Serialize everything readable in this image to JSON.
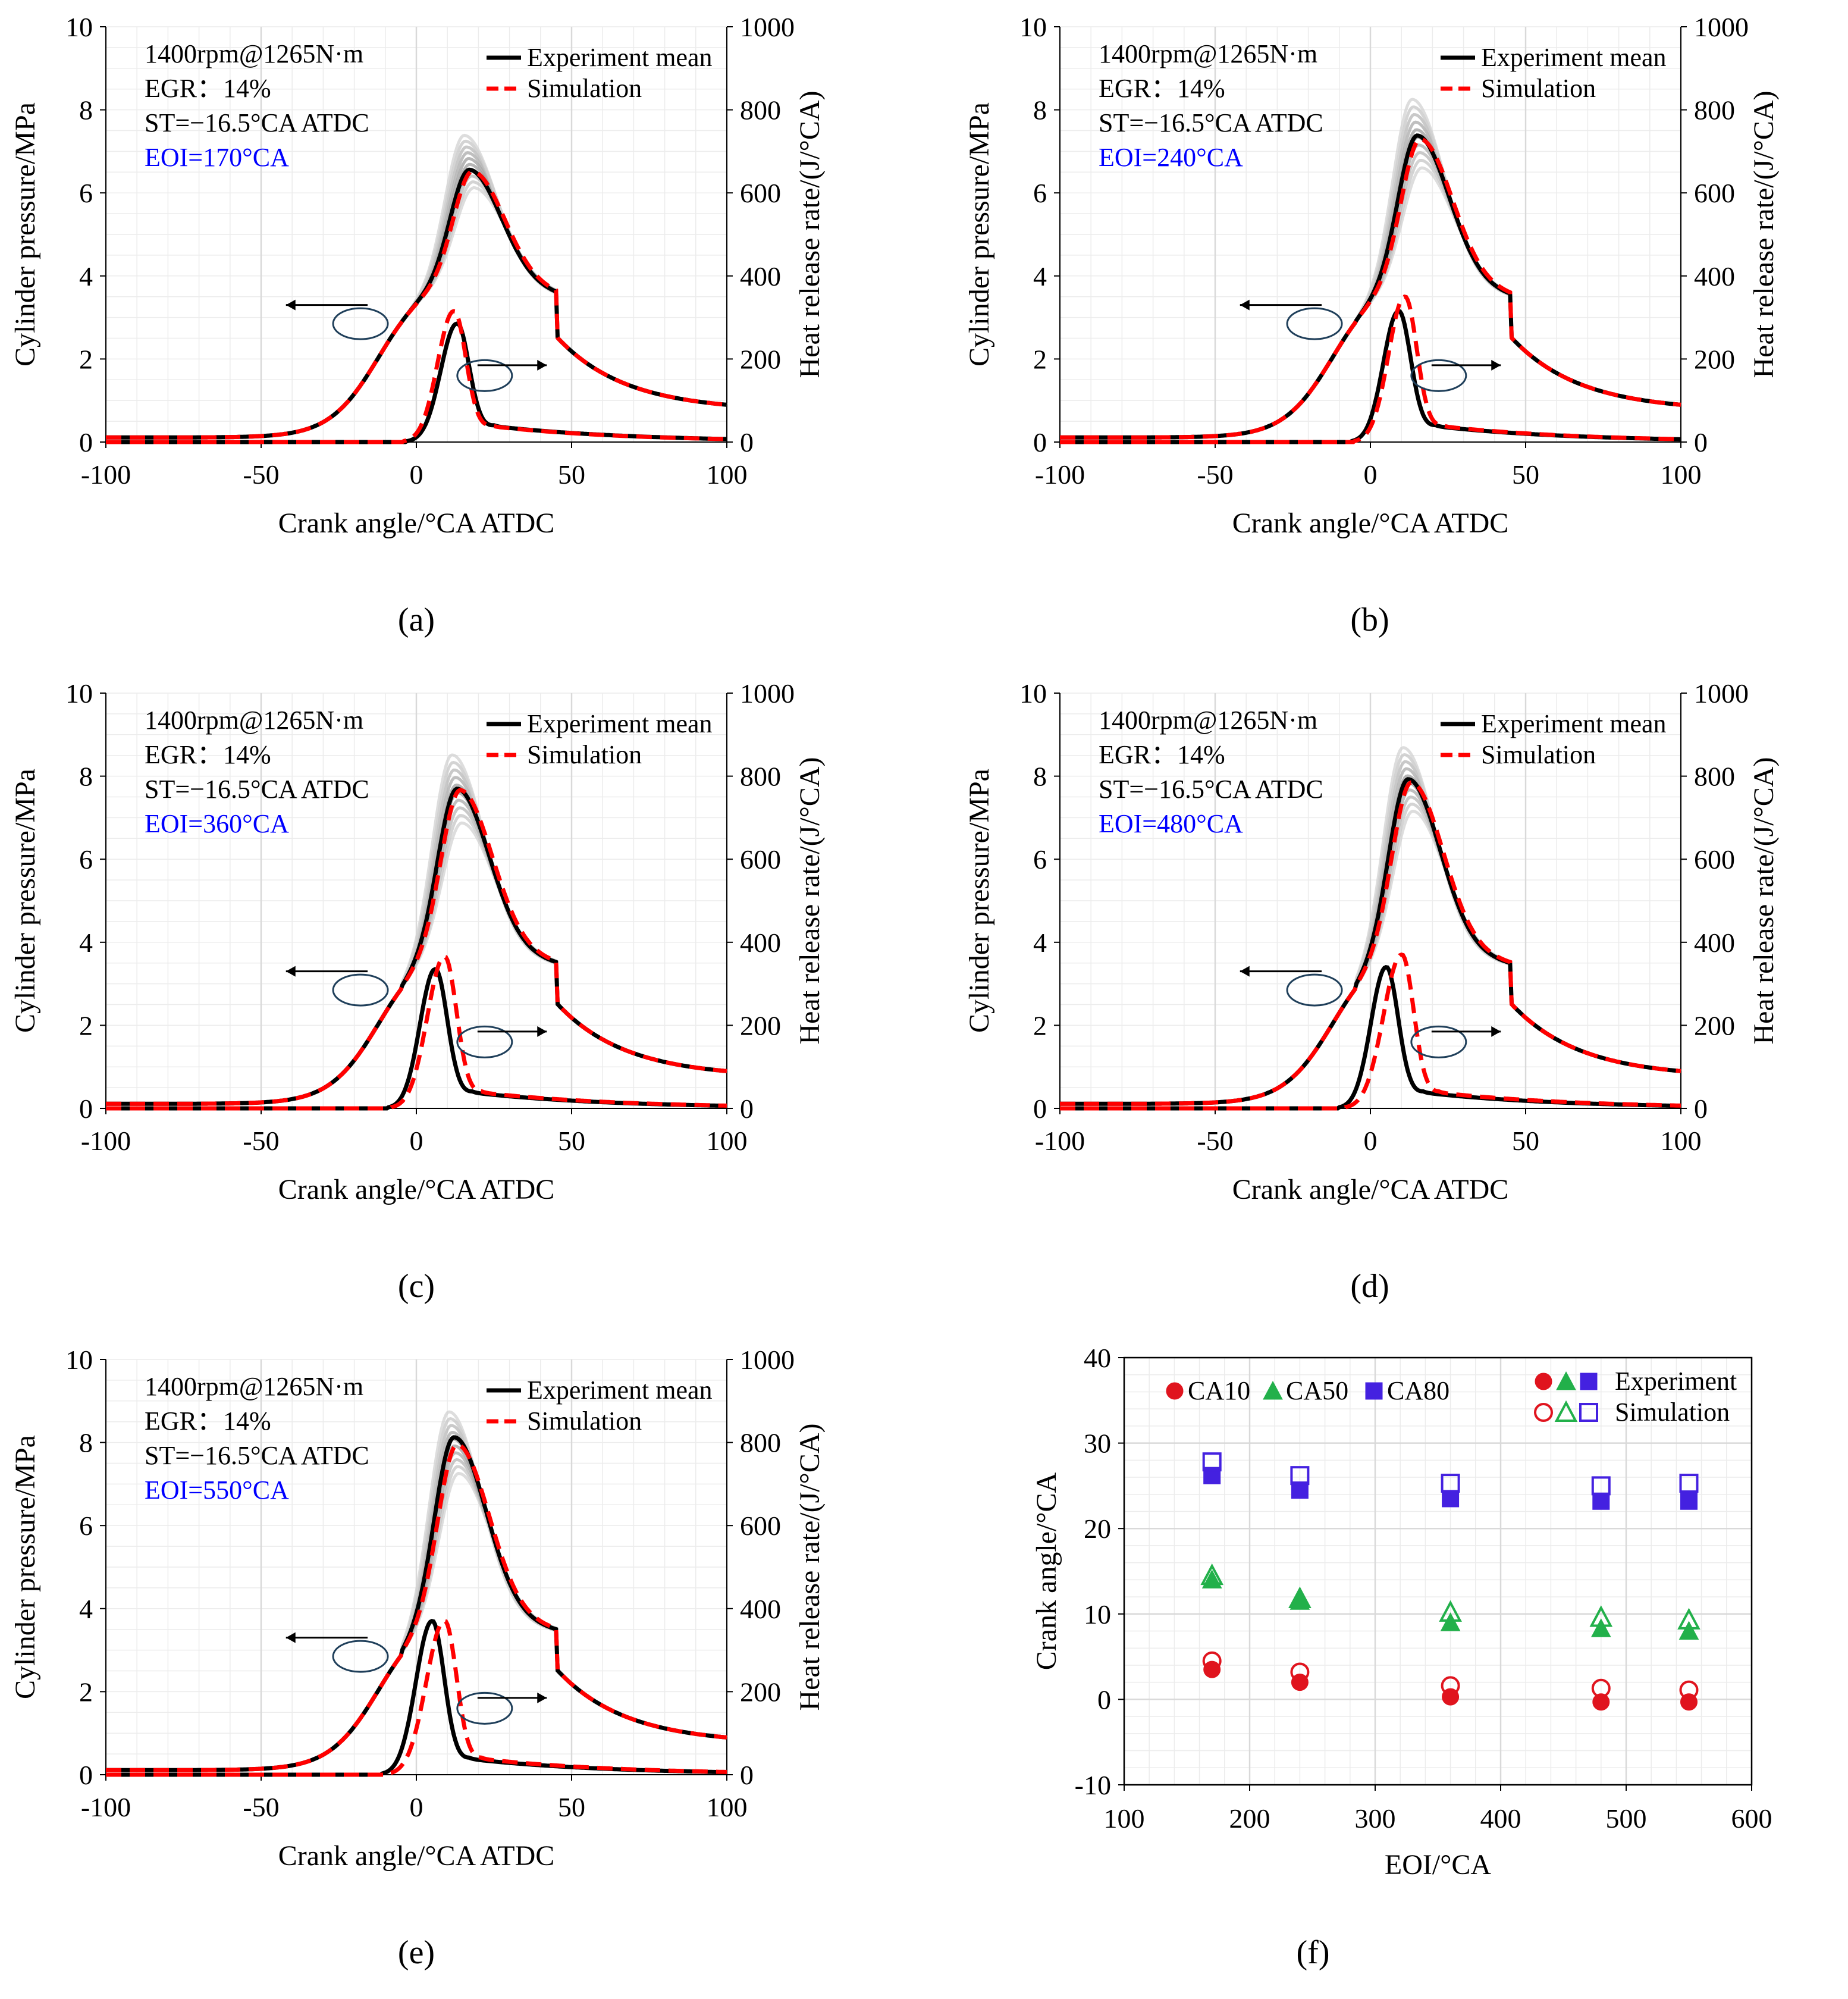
{
  "colors": {
    "experiment": "#000000",
    "simulation": "#ff0000",
    "cycles": "#8a8a8a",
    "annotation_eoi": "#0000ff",
    "grid": "#d9d9d9",
    "ca10": "#e0141e",
    "ca50": "#22b04a",
    "ca80": "#4421e0",
    "ellipse": "#1f3f5a"
  },
  "chart_data": [
    {
      "type": "line",
      "panel_label": "(a)",
      "xlabel": "Crank angle/°CA ATDC",
      "ylabel_left": "Cylinder pressure/MPa",
      "ylabel_right": "Heat release rate/(J/°CA)",
      "xlim": [
        -100,
        100
      ],
      "ylim_left": [
        0,
        10
      ],
      "ylim_right": [
        0,
        1000
      ],
      "x_ticks": [
        "-100",
        "-50",
        "0",
        "50",
        "100"
      ],
      "y_ticks_left": [
        "0",
        "2",
        "4",
        "6",
        "8",
        "10"
      ],
      "y_ticks_right": [
        "0",
        "200",
        "400",
        "600",
        "800",
        "1000"
      ],
      "annotations": [
        "1400rpm@1265N·m",
        "EGR：14%",
        "ST=−16.5°CA ATDC",
        "EOI=170°CA"
      ],
      "legend": [
        "Experiment mean",
        "Simulation"
      ],
      "series": [
        {
          "name": "Experiment mean (pressure)",
          "peak_x": 17,
          "peak_y": 6.75
        },
        {
          "name": "Simulation (pressure)",
          "peak_x": 18,
          "peak_y": 6.7
        },
        {
          "name": "Experiment mean (heat release)",
          "peak_x": 13,
          "peak_y": 285,
          "start_x": -3
        },
        {
          "name": "Simulation (heat release)",
          "peak_x": 12,
          "peak_y": 315,
          "start_x": -4
        },
        {
          "name": "Cycles (pressure)",
          "peak_min": 6.3,
          "peak_max": 7.6
        }
      ]
    },
    {
      "type": "line",
      "panel_label": "(b)",
      "xlabel": "Crank angle/°CA ATDC",
      "ylabel_left": "Cylinder pressure/MPa",
      "ylabel_right": "Heat release rate/(J/°CA)",
      "xlim": [
        -100,
        100
      ],
      "ylim_left": [
        0,
        10
      ],
      "ylim_right": [
        0,
        1000
      ],
      "x_ticks": [
        "-100",
        "-50",
        "0",
        "50",
        "100"
      ],
      "y_ticks_left": [
        "0",
        "2",
        "4",
        "6",
        "8",
        "10"
      ],
      "y_ticks_right": [
        "0",
        "200",
        "400",
        "600",
        "800",
        "1000"
      ],
      "annotations": [
        "1400rpm@1265N·m",
        "EGR：14%",
        "ST=−16.5°CA ATDC",
        "EOI=240°CA"
      ],
      "legend": [
        "Experiment mean",
        "Simulation"
      ],
      "series": [
        {
          "name": "Experiment mean (pressure)",
          "peak_x": 15,
          "peak_y": 7.6
        },
        {
          "name": "Simulation (pressure)",
          "peak_x": 16,
          "peak_y": 7.5
        },
        {
          "name": "Experiment mean (heat release)",
          "peak_x": 9,
          "peak_y": 315,
          "start_x": -6
        },
        {
          "name": "Simulation (heat release)",
          "peak_x": 11,
          "peak_y": 350,
          "start_x": -5
        },
        {
          "name": "Cycles (pressure)",
          "peak_min": 6.8,
          "peak_max": 8.5
        }
      ]
    },
    {
      "type": "line",
      "panel_label": "(c)",
      "xlabel": "Crank angle/°CA ATDC",
      "ylabel_left": "Cylinder pressure/MPa",
      "ylabel_right": "Heat release rate/(J/°CA)",
      "xlim": [
        -100,
        100
      ],
      "ylim_left": [
        0,
        10
      ],
      "ylim_right": [
        0,
        1000
      ],
      "x_ticks": [
        "-100",
        "-50",
        "0",
        "50",
        "100"
      ],
      "y_ticks_left": [
        "0",
        "2",
        "4",
        "6",
        "8",
        "10"
      ],
      "y_ticks_right": [
        "0",
        "200",
        "400",
        "600",
        "800",
        "1000"
      ],
      "annotations": [
        "1400rpm@1265N·m",
        "EGR：14%",
        "ST=−16.5°CA ATDC",
        "EOI=360°CA"
      ],
      "legend": [
        "Experiment mean",
        "Simulation"
      ],
      "series": [
        {
          "name": "Experiment mean (pressure)",
          "peak_x": 13,
          "peak_y": 7.95
        },
        {
          "name": "Simulation (pressure)",
          "peak_x": 14,
          "peak_y": 7.9
        },
        {
          "name": "Experiment mean (heat release)",
          "peak_x": 6,
          "peak_y": 335,
          "start_x": -9
        },
        {
          "name": "Simulation (heat release)",
          "peak_x": 9,
          "peak_y": 365,
          "start_x": -8
        },
        {
          "name": "Cycles (pressure)",
          "peak_min": 7.1,
          "peak_max": 8.8
        }
      ]
    },
    {
      "type": "line",
      "panel_label": "(d)",
      "xlabel": "Crank angle/°CA ATDC",
      "ylabel_left": "Cylinder pressure/MPa",
      "ylabel_right": "Heat release rate/(J/°CA)",
      "xlim": [
        -100,
        100
      ],
      "ylim_left": [
        0,
        10
      ],
      "ylim_right": [
        0,
        1000
      ],
      "x_ticks": [
        "-100",
        "-50",
        "0",
        "50",
        "100"
      ],
      "y_ticks_left": [
        "0",
        "2",
        "4",
        "6",
        "8",
        "10"
      ],
      "y_ticks_right": [
        "0",
        "200",
        "400",
        "600",
        "800",
        "1000"
      ],
      "annotations": [
        "1400rpm@1265N·m",
        "EGR：14%",
        "ST=−16.5°CA ATDC",
        "EOI=480°CA"
      ],
      "legend": [
        "Experiment mean",
        "Simulation"
      ],
      "series": [
        {
          "name": "Experiment mean (pressure)",
          "peak_x": 12,
          "peak_y": 8.2
        },
        {
          "name": "Simulation (pressure)",
          "peak_x": 13,
          "peak_y": 8.1
        },
        {
          "name": "Experiment mean (heat release)",
          "peak_x": 5,
          "peak_y": 340,
          "start_x": -10
        },
        {
          "name": "Simulation (heat release)",
          "peak_x": 10,
          "peak_y": 370,
          "start_x": -8
        },
        {
          "name": "Cycles (pressure)",
          "peak_min": 7.4,
          "peak_max": 9.0
        }
      ]
    },
    {
      "type": "line",
      "panel_label": "(e)",
      "xlabel": "Crank angle/°CA ATDC",
      "ylabel_left": "Cylinder pressure/MPa",
      "ylabel_right": "Heat release rate/(J/°CA)",
      "xlim": [
        -100,
        100
      ],
      "ylim_left": [
        0,
        10
      ],
      "ylim_right": [
        0,
        1000
      ],
      "x_ticks": [
        "-100",
        "-50",
        "0",
        "50",
        "100"
      ],
      "y_ticks_left": [
        "0",
        "2",
        "4",
        "6",
        "8",
        "10"
      ],
      "y_ticks_right": [
        "0",
        "200",
        "400",
        "600",
        "800",
        "1000"
      ],
      "annotations": [
        "1400rpm@1265N·m",
        "EGR：14%",
        "ST=−16.5°CA ATDC",
        "EOI=550°CA"
      ],
      "legend": [
        "Experiment mean",
        "Simulation"
      ],
      "series": [
        {
          "name": "Experiment mean (pressure)",
          "peak_x": 12,
          "peak_y": 8.4
        },
        {
          "name": "Simulation (pressure)",
          "peak_x": 13,
          "peak_y": 8.2
        },
        {
          "name": "Experiment mean (heat release)",
          "peak_x": 5,
          "peak_y": 370,
          "start_x": -11
        },
        {
          "name": "Simulation (heat release)",
          "peak_x": 9,
          "peak_y": 370,
          "start_x": -9
        },
        {
          "name": "Cycles (pressure)",
          "peak_min": 7.5,
          "peak_max": 9.05
        }
      ]
    },
    {
      "type": "scatter",
      "panel_label": "(f)",
      "xlabel": "EOI/°CA",
      "ylabel": "Crank angle/°CA",
      "xlim": [
        100,
        600
      ],
      "ylim": [
        -10,
        40
      ],
      "x_ticks": [
        "100",
        "200",
        "300",
        "400",
        "500",
        "600"
      ],
      "y_ticks": [
        "-10",
        "0",
        "10",
        "20",
        "30",
        "40"
      ],
      "legend_series": [
        "CA10",
        "CA50",
        "CA80"
      ],
      "legend_source": [
        "Experiment",
        "Simulation"
      ],
      "x": [
        170,
        240,
        360,
        480,
        550
      ],
      "series": [
        {
          "name": "CA10 Experiment",
          "values": [
            3.5,
            2.0,
            0.3,
            -0.3,
            -0.3
          ]
        },
        {
          "name": "CA10 Simulation",
          "values": [
            4.5,
            3.2,
            1.6,
            1.3,
            1.1
          ]
        },
        {
          "name": "CA50 Experiment",
          "values": [
            14.0,
            11.5,
            9.0,
            8.3,
            8.0
          ]
        },
        {
          "name": "CA50 Simulation",
          "values": [
            14.5,
            11.8,
            10.2,
            9.6,
            9.3
          ]
        },
        {
          "name": "CA80 Experiment",
          "values": [
            26.2,
            24.5,
            23.5,
            23.2,
            23.2
          ]
        },
        {
          "name": "CA80 Simulation",
          "values": [
            27.8,
            26.2,
            25.3,
            25.0,
            25.3
          ]
        }
      ]
    }
  ]
}
